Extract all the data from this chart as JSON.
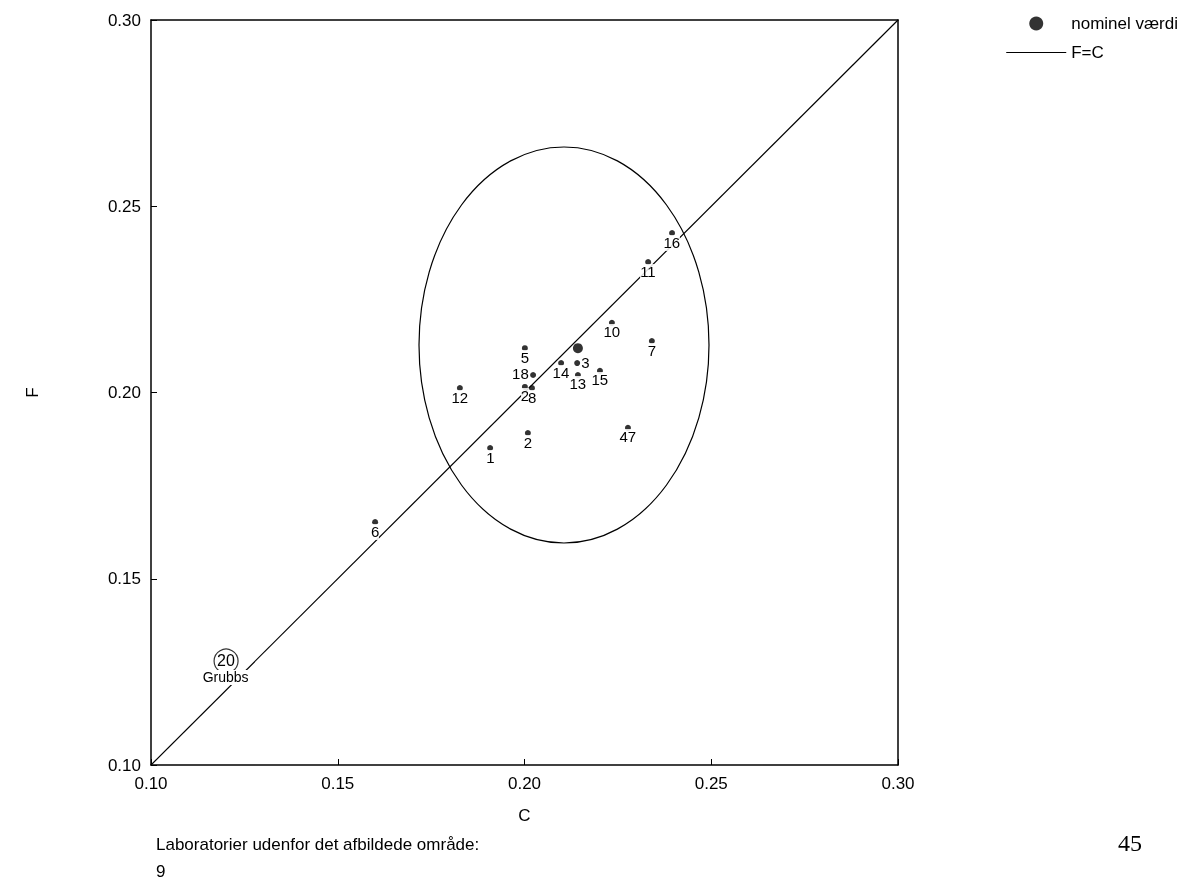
{
  "chart_data": {
    "type": "scatter",
    "xlabel": "C",
    "ylabel": "F",
    "xlim": [
      0.1,
      0.3
    ],
    "ylim": [
      0.1,
      0.3
    ],
    "xticks": [
      {
        "value": 0.1,
        "label": "0.10"
      },
      {
        "value": 0.15,
        "label": "0.15"
      },
      {
        "value": 0.2,
        "label": "0.20"
      },
      {
        "value": 0.25,
        "label": "0.25"
      },
      {
        "value": 0.3,
        "label": "0.30"
      }
    ],
    "yticks": [
      {
        "value": 0.1,
        "label": "0.10"
      },
      {
        "value": 0.15,
        "label": "0.15"
      },
      {
        "value": 0.2,
        "label": "0.20"
      },
      {
        "value": 0.25,
        "label": "0.25"
      },
      {
        "value": 0.3,
        "label": "0.30"
      }
    ],
    "grid": false,
    "legend": "top right",
    "series": [
      {
        "type": "scatter",
        "marker": "circle",
        "color": "#000000",
        "x": [
          0.2395,
          0.2331,
          0.2234,
          0.2341,
          0.2001,
          0.2098,
          0.2141,
          0.2143,
          0.2202,
          0.2023,
          0.2001,
          0.202,
          0.1827,
          0.2009,
          0.1908,
          0.2277,
          0.16
        ],
        "values": [
          0.2428,
          0.235,
          0.2187,
          0.2138,
          0.2119,
          0.2079,
          0.2079,
          0.2047,
          0.2058,
          0.2047,
          0.2015,
          0.2012,
          0.2012,
          0.1891,
          0.1851,
          0.1905,
          0.1652
        ]
      },
      {
        "type": "scatter",
        "marker": "circle",
        "color": "#000000",
        "x": [
          0.1201
        ],
        "values": [
          0.1279
        ]
      },
      {
        "type": "scatter",
        "name": "nominel værdi",
        "marker": "circle",
        "color": "#000000",
        "x": [
          0.2143
        ],
        "values": [
          0.2119
        ]
      },
      {
        "type": "line",
        "name": "F=C",
        "marker": "none",
        "color": "#000000",
        "x": [
          0.1,
          0.3
        ],
        "values": [
          0.1,
          0.3
        ]
      }
    ],
    "annotations": [
      {
        "text": "16",
        "x": 0.2395,
        "y": 0.2428
      },
      {
        "text": "11",
        "x": 0.2331,
        "y": 0.235
      },
      {
        "text": "10",
        "x": 0.2234,
        "y": 0.2187
      },
      {
        "text": "7",
        "x": 0.2341,
        "y": 0.2138
      },
      {
        "text": "5",
        "x": 0.2001,
        "y": 0.2119
      },
      {
        "text": "14",
        "x": 0.2098,
        "y": 0.2079
      },
      {
        "text": "3",
        "x": 0.2141,
        "y": 0.2079
      },
      {
        "text": "13",
        "x": 0.2143,
        "y": 0.2047
      },
      {
        "text": "15",
        "x": 0.2202,
        "y": 0.2058
      },
      {
        "text": "18",
        "x": 0.2023,
        "y": 0.2047
      },
      {
        "text": "2",
        "x": 0.2001,
        "y": 0.2015
      },
      {
        "text": "8",
        "x": 0.202,
        "y": 0.2012
      },
      {
        "text": "12",
        "x": 0.1827,
        "y": 0.2012
      },
      {
        "text": "2",
        "x": 0.2009,
        "y": 0.1891
      },
      {
        "text": "1",
        "x": 0.1908,
        "y": 0.1851
      },
      {
        "text": "47",
        "x": 0.2277,
        "y": 0.1905
      },
      {
        "text": "6",
        "x": 0.16,
        "y": 0.1652
      },
      {
        "text": "20",
        "x": 0.1201,
        "y": 0.1279
      },
      {
        "text": "Grubbs",
        "x": 0.12,
        "y": 0.1236
      },
      "Laboratorier udenfor det afbildede område:",
      "9",
      "45"
    ]
  }
}
